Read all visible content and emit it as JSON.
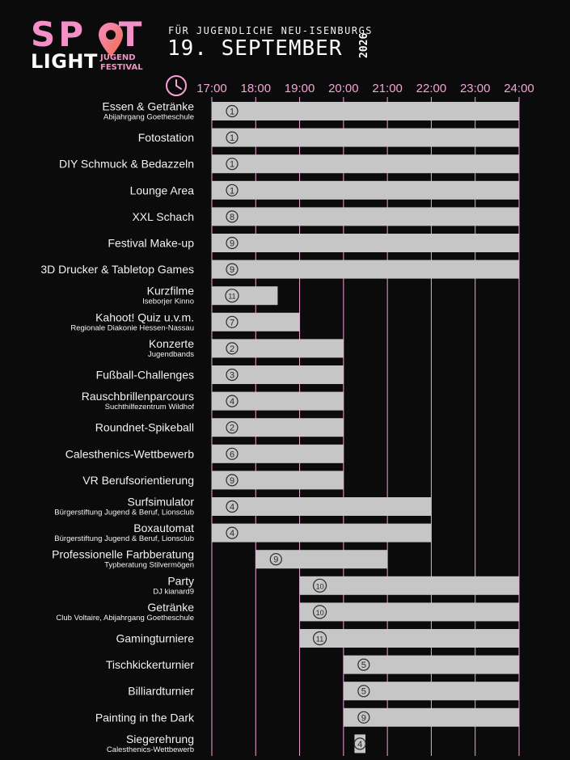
{
  "header": {
    "logo_spot": "SPOT",
    "logo_light": "LIGHT",
    "logo_jugend": "JUGEND",
    "logo_festival": "FESTIVAL",
    "subtitle": "FÜR JUGENDLICHE NEU-ISENBURGS",
    "date": "19. SEPTEMBER",
    "year": "2026"
  },
  "colors": {
    "background": "#0b0b0b",
    "accent_pink": "#f4a3d8",
    "logo_gradient_start": "#f48fc8",
    "logo_gradient_end": "#f26a48",
    "bar_fill": "#c6c6c6",
    "text": "#f2f2f2"
  },
  "icons": {
    "time": "clock-icon",
    "logo": "location-pin-icon"
  },
  "chart_data": {
    "type": "gantt",
    "xaxis": {
      "ticks": [
        "17:00",
        "18:00",
        "19:00",
        "20:00",
        "21:00",
        "22:00",
        "23:00",
        "24:00"
      ],
      "range": [
        17,
        24
      ]
    },
    "grid": true,
    "rows": [
      {
        "name": "Essen & Getränke",
        "sub": "Abijahrgang Goetheschule",
        "start": 17,
        "end": 24,
        "marker": "1"
      },
      {
        "name": "Fotostation",
        "sub": "",
        "start": 17,
        "end": 24,
        "marker": "1"
      },
      {
        "name": "DIY Schmuck & Bedazzeln",
        "sub": "",
        "start": 17,
        "end": 24,
        "marker": "1"
      },
      {
        "name": "Lounge Area",
        "sub": "",
        "start": 17,
        "end": 24,
        "marker": "1"
      },
      {
        "name": "XXL Schach",
        "sub": "",
        "start": 17,
        "end": 24,
        "marker": "8"
      },
      {
        "name": "Festival Make-up",
        "sub": "",
        "start": 17,
        "end": 24,
        "marker": "9"
      },
      {
        "name": "3D Drucker & Tabletop Games",
        "sub": "",
        "start": 17,
        "end": 24,
        "marker": "9"
      },
      {
        "name": "Kurzfilme",
        "sub": "Iseborjer Kinno",
        "start": 17,
        "end": 18.5,
        "marker": "11"
      },
      {
        "name": "Kahoot! Quiz u.v.m.",
        "sub": "Regionale Diakonie Hessen-Nassau",
        "start": 17,
        "end": 19,
        "marker": "7"
      },
      {
        "name": "Konzerte",
        "sub": "Jugendbands",
        "start": 17,
        "end": 20,
        "marker": "2"
      },
      {
        "name": "Fußball-Challenges",
        "sub": "",
        "start": 17,
        "end": 20,
        "marker": "3"
      },
      {
        "name": "Rauschbrillenparcours",
        "sub": "Suchthilfezentrum Wildhof",
        "start": 17,
        "end": 20,
        "marker": "4"
      },
      {
        "name": "Roundnet-Spikeball",
        "sub": "",
        "start": 17,
        "end": 20,
        "marker": "2"
      },
      {
        "name": "Calesthenics-Wettbewerb",
        "sub": "",
        "start": 17,
        "end": 20,
        "marker": "6"
      },
      {
        "name": "VR Berufsorientierung",
        "sub": "",
        "start": 17,
        "end": 20,
        "marker": "9"
      },
      {
        "name": "Surfsimulator",
        "sub": "Bürgerstiftung Jugend & Beruf, Lionsclub",
        "start": 17,
        "end": 22,
        "marker": "4"
      },
      {
        "name": "Boxautomat",
        "sub": "Bürgerstiftung Jugend & Beruf, Lionsclub",
        "start": 17,
        "end": 22,
        "marker": "4"
      },
      {
        "name": "Professionelle Farbberatung",
        "sub": "Typberatung Stilvermögen",
        "start": 18,
        "end": 21,
        "marker": "9"
      },
      {
        "name": "Party",
        "sub": "DJ kianard9",
        "start": 19,
        "end": 24,
        "marker": "10"
      },
      {
        "name": "Getränke",
        "sub": "Club Voltaire, Abijahrgang Goetheschule",
        "start": 19,
        "end": 24,
        "marker": "10"
      },
      {
        "name": "Gamingturniere",
        "sub": "",
        "start": 19,
        "end": 24,
        "marker": "11"
      },
      {
        "name": "Tischkickerturnier",
        "sub": "",
        "start": 20,
        "end": 24,
        "marker": "5"
      },
      {
        "name": "Billiardturnier",
        "sub": "",
        "start": 20,
        "end": 24,
        "marker": "5"
      },
      {
        "name": "Painting in the Dark",
        "sub": "",
        "start": 20,
        "end": 24,
        "marker": "9"
      },
      {
        "name": "Siegerehrung",
        "sub": "Calesthenics-Wettbewerb",
        "start": 20.25,
        "end": 20.5,
        "marker": "4"
      }
    ]
  }
}
